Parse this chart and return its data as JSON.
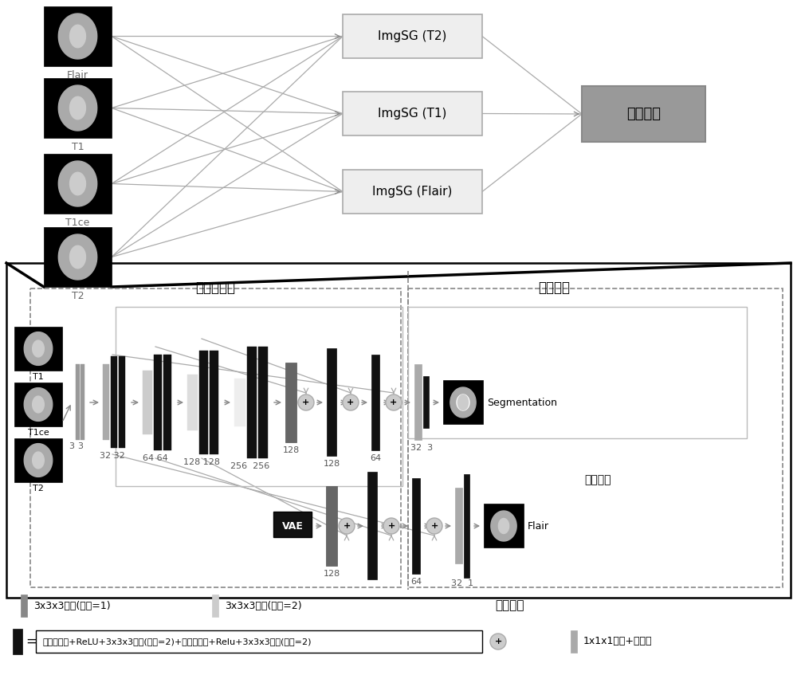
{
  "bg_color": "#ffffff",
  "top": {
    "mri_labels": [
      "Flair",
      "T1",
      "T1ce",
      "T2"
    ],
    "imgsg_labels": [
      "ImgSG (T2)",
      "ImgSG (T1)",
      "ImgSG (Flair)"
    ],
    "ensemble_label": "模型集成"
  },
  "bottom": {
    "title_encoder": "编码器模块",
    "title_segment": "分割模块",
    "title_generate": "生成模块"
  },
  "legend": {
    "dark_label": "3x3x3卷积(步长=1)",
    "light_label": "3x3x3卷积(步长=2)",
    "formula": "实例归一化+ReLU+3x3x3卷积(步长=2)+实例归一化+Relu+3x3x3卷积(步长=2)",
    "upsample": "1x1x1卷积+上采样"
  }
}
